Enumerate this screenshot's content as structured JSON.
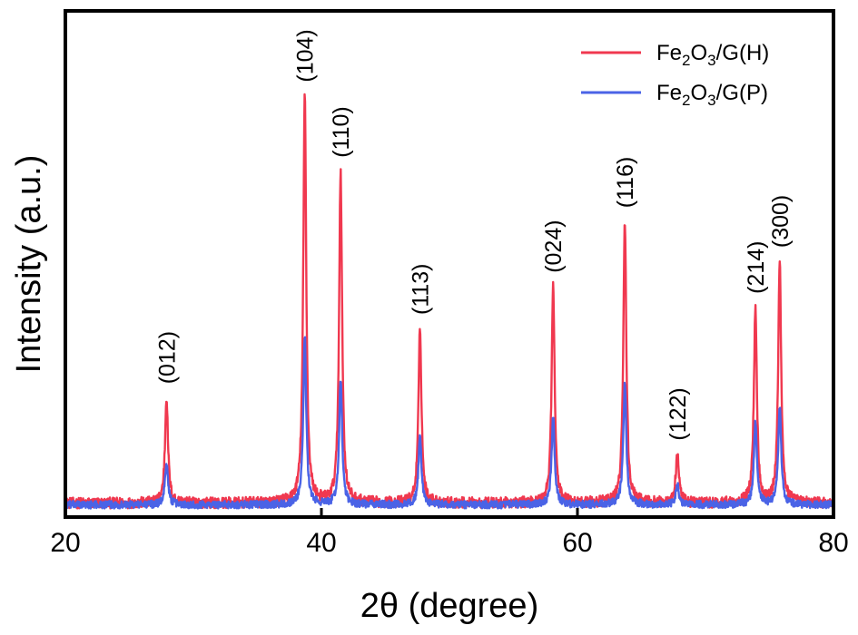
{
  "chart_data": {
    "type": "line",
    "xlabel": "2θ (degree)",
    "ylabel": "Intensity (a.u.)",
    "xlim": [
      20,
      80
    ],
    "ylim": [
      0,
      100
    ],
    "x_ticks": [
      "20",
      "40",
      "60",
      "80"
    ],
    "y_ticks": [],
    "grid": false,
    "legend_position": "top-right",
    "colors": {
      "H": "#f0384f",
      "P": "#4a63e6"
    },
    "series": [
      {
        "key": "H",
        "legend": {
          "base1": "Fe",
          "sub1": "2",
          "base2": "O",
          "sub2": "3",
          "rest": "/G(H)"
        },
        "baseline": 1.6,
        "noise": 1.3,
        "peaks": [
          {
            "x": 27.9,
            "height": 27.0
          },
          {
            "x": 38.7,
            "height": 99.0
          },
          {
            "x": 41.5,
            "height": 81.0
          },
          {
            "x": 47.7,
            "height": 43.5
          },
          {
            "x": 58.1,
            "height": 53.5
          },
          {
            "x": 63.7,
            "height": 69.0
          },
          {
            "x": 67.8,
            "height": 13.5
          },
          {
            "x": 73.9,
            "height": 48.5
          },
          {
            "x": 75.8,
            "height": 59.5
          }
        ]
      },
      {
        "key": "P",
        "legend": {
          "base1": "Fe",
          "sub1": "2",
          "base2": "O",
          "sub2": "3",
          "rest": "/G(P)"
        },
        "baseline": 1.2,
        "noise": 0.9,
        "peaks": [
          {
            "x": 27.9,
            "height": 11.5
          },
          {
            "x": 38.7,
            "height": 41.0
          },
          {
            "x": 41.5,
            "height": 31.0
          },
          {
            "x": 47.7,
            "height": 17.5
          },
          {
            "x": 58.1,
            "height": 22.0
          },
          {
            "x": 63.7,
            "height": 30.0
          },
          {
            "x": 67.8,
            "height": 6.0
          },
          {
            "x": 73.9,
            "height": 21.0
          },
          {
            "x": 75.8,
            "height": 24.5
          }
        ]
      }
    ],
    "annotations": [
      {
        "x": 27.9,
        "y": 27.0,
        "text": "(012)"
      },
      {
        "x": 38.7,
        "y": 99.0,
        "text": "(104)"
      },
      {
        "x": 41.5,
        "y": 81.0,
        "text": "(110)"
      },
      {
        "x": 47.7,
        "y": 43.5,
        "text": "(113)"
      },
      {
        "x": 58.1,
        "y": 53.5,
        "text": "(024)"
      },
      {
        "x": 63.7,
        "y": 69.0,
        "text": "(116)"
      },
      {
        "x": 67.8,
        "y": 13.5,
        "text": "(122)"
      },
      {
        "x": 73.9,
        "y": 48.5,
        "text": "(214)"
      },
      {
        "x": 75.8,
        "y": 59.5,
        "text": "(300)"
      }
    ]
  }
}
